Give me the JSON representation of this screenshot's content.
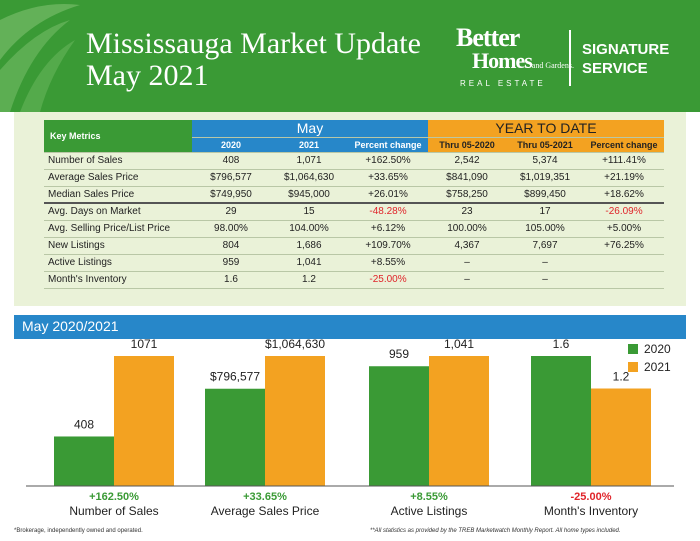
{
  "header": {
    "title_line1": "Mississauga Market Update",
    "title_line2": "May 2021",
    "brand_line1": "Better",
    "brand_line2": "Homes",
    "brand_line2_small": "and Gardens.",
    "brand_line3": "REAL ESTATE",
    "service_line1": "SIGNATURE",
    "service_line2": "SERVICE"
  },
  "table": {
    "key_metrics_label": "Key Metrics",
    "may_label": "May",
    "ytd_label": "YEAR TO DATE",
    "subheaders": [
      "2020",
      "2021",
      "Percent change",
      "Thru 05-2020",
      "Thru 05-2021",
      "Percent change"
    ],
    "rows": [
      {
        "metric": "Number of Sales",
        "may2020": "408",
        "may2021": "1,071",
        "may_pct": "+162.50%",
        "ytd2020": "2,542",
        "ytd2021": "5,374",
        "ytd_pct": "+111.41%"
      },
      {
        "metric": "Average Sales Price",
        "may2020": "$796,577",
        "may2021": "$1,064,630",
        "may_pct": "+33.65%",
        "ytd2020": "$841,090",
        "ytd2021": "$1,019,351",
        "ytd_pct": "+21.19%"
      },
      {
        "metric": "Median Sales Price",
        "may2020": "$749,950",
        "may2021": "$945,000",
        "may_pct": "+26.01%",
        "ytd2020": "$758,250",
        "ytd2021": "$899,450",
        "ytd_pct": "+18.62%"
      },
      {
        "metric": "Avg. Days on Market",
        "may2020": "29",
        "may2021": "15",
        "may_pct": "-48.28%",
        "ytd2020": "23",
        "ytd2021": "17",
        "ytd_pct": "-26.09%"
      },
      {
        "metric": "Avg. Selling Price/List Price",
        "may2020": "98.00%",
        "may2021": "104.00%",
        "may_pct": "+6.12%",
        "ytd2020": "100.00%",
        "ytd2021": "105.00%",
        "ytd_pct": "+5.00%"
      },
      {
        "metric": "New Listings",
        "may2020": "804",
        "may2021": "1,686",
        "may_pct": "+109.70%",
        "ytd2020": "4,367",
        "ytd2021": "7,697",
        "ytd_pct": "+76.25%"
      },
      {
        "metric": "Active Listings",
        "may2020": "959",
        "may2021": "1,041",
        "may_pct": "+8.55%",
        "ytd2020": "–",
        "ytd2021": "–",
        "ytd_pct": ""
      },
      {
        "metric": "Month's Inventory",
        "may2020": "1.6",
        "may2021": "1.2",
        "may_pct": "-25.00%",
        "ytd2020": "–",
        "ytd2021": "–",
        "ytd_pct": ""
      }
    ]
  },
  "chart_section_title": "May 2020/2021",
  "chart_data": {
    "type": "bar",
    "categories": [
      "Number of Sales",
      "Average Sales Price",
      "Active Listings",
      "Month's Inventory"
    ],
    "series": [
      {
        "name": "2020",
        "values": [
          408,
          796577,
          959,
          1.6
        ],
        "labels": [
          "408",
          "$796,577",
          "959",
          "1.6"
        ],
        "color": "#3a9a35"
      },
      {
        "name": "2021",
        "values": [
          1071,
          1064630,
          1041,
          1.2
        ],
        "labels": [
          "1071",
          "$1,064,630",
          "1,041",
          "1.2"
        ],
        "color": "#f3a221"
      }
    ],
    "percent_changes": [
      "+162.50%",
      "+33.65%",
      "+8.55%",
      "-25.00%"
    ],
    "percent_colors": [
      "#3a9a35",
      "#3a9a35",
      "#3a9a35",
      "#e0242a"
    ],
    "note": "each category drawn on its own independent scale"
  },
  "footer": {
    "left": "*Brokerage, independently owned and operated.",
    "right": "**All statistics as provided by the TREB Marketwatch Monthly Report. All home types included."
  },
  "colors": {
    "green": "#3a9a35",
    "blue": "#2787c9",
    "orange": "#f3a221",
    "negative": "#e0242a"
  }
}
